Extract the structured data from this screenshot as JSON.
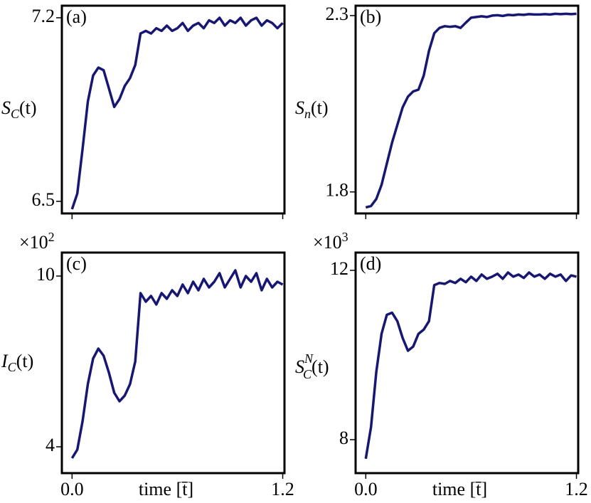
{
  "chart_data": [
    {
      "type": "line",
      "annotation": "(a)",
      "ylabel": {
        "main": "S",
        "sub": "C",
        "args": "(t)"
      },
      "x": [
        0,
        0.03,
        0.06,
        0.09,
        0.12,
        0.15,
        0.18,
        0.21,
        0.24,
        0.27,
        0.3,
        0.33,
        0.36,
        0.39,
        0.42,
        0.45,
        0.48,
        0.51,
        0.54,
        0.57,
        0.6,
        0.63,
        0.66,
        0.69,
        0.72,
        0.75,
        0.78,
        0.81,
        0.84,
        0.87,
        0.9,
        0.93,
        0.96,
        0.99,
        1.02,
        1.05,
        1.08,
        1.11,
        1.14,
        1.17,
        1.2
      ],
      "values": [
        6.47,
        6.53,
        6.7,
        6.88,
        6.98,
        7.01,
        7.0,
        6.93,
        6.86,
        6.89,
        6.94,
        6.97,
        7.02,
        7.14,
        7.15,
        7.14,
        7.16,
        7.15,
        7.17,
        7.15,
        7.16,
        7.18,
        7.15,
        7.17,
        7.18,
        7.16,
        7.19,
        7.18,
        7.2,
        7.17,
        7.19,
        7.18,
        7.2,
        7.17,
        7.19,
        7.2,
        7.17,
        7.19,
        7.18,
        7.16,
        7.18
      ],
      "color": "#15157e",
      "xlim": [
        -0.058,
        1.21
      ],
      "ylim": [
        6.454,
        7.246
      ],
      "xticks": [
        {
          "value": 0,
          "label": "0.0"
        },
        1.2
      ],
      "show_xtick_labels": false,
      "yticks": [
        6.5,
        7.2
      ]
    },
    {
      "type": "line",
      "annotation": "(b)",
      "ylabel": {
        "main": "S",
        "sub": "n",
        "args": "(t)"
      },
      "x": [
        0,
        0.03,
        0.06,
        0.09,
        0.12,
        0.15,
        0.18,
        0.21,
        0.24,
        0.27,
        0.3,
        0.33,
        0.36,
        0.39,
        0.42,
        0.45,
        0.48,
        0.51,
        0.54,
        0.57,
        0.6,
        0.63,
        0.66,
        0.69,
        0.72,
        0.75,
        0.78,
        0.81,
        0.84,
        0.87,
        0.9,
        0.93,
        0.96,
        0.99,
        1.02,
        1.05,
        1.08,
        1.11,
        1.14,
        1.17,
        1.2
      ],
      "values": [
        1.756,
        1.76,
        1.78,
        1.82,
        1.88,
        1.94,
        1.99,
        2.04,
        2.07,
        2.085,
        2.09,
        2.13,
        2.2,
        2.25,
        2.265,
        2.27,
        2.268,
        2.27,
        2.265,
        2.28,
        2.294,
        2.296,
        2.298,
        2.296,
        2.3,
        2.301,
        2.299,
        2.302,
        2.301,
        2.303,
        2.302,
        2.304,
        2.303,
        2.303,
        2.304,
        2.303,
        2.305,
        2.304,
        2.305,
        2.304,
        2.305
      ],
      "color": "#15157e",
      "xlim": [
        -0.058,
        1.21
      ],
      "ylim": [
        1.739,
        2.328
      ],
      "xticks": [
        {
          "value": 0,
          "label": "0.0"
        },
        1.2
      ],
      "show_xtick_labels": false,
      "yticks": [
        1.8,
        2.3
      ]
    },
    {
      "type": "line",
      "annotation": "(c)",
      "ylabel": {
        "main": "I",
        "sub": "C",
        "args": "(t)"
      },
      "xlabel": "time [t̄]",
      "multiplier": {
        "base": "×10",
        "exponent": "2"
      },
      "x": [
        0,
        0.03,
        0.06,
        0.09,
        0.12,
        0.15,
        0.18,
        0.21,
        0.24,
        0.27,
        0.3,
        0.33,
        0.36,
        0.39,
        0.42,
        0.45,
        0.48,
        0.51,
        0.54,
        0.57,
        0.6,
        0.63,
        0.66,
        0.69,
        0.72,
        0.75,
        0.78,
        0.81,
        0.84,
        0.87,
        0.9,
        0.93,
        0.96,
        0.99,
        1.02,
        1.05,
        1.08,
        1.11,
        1.14,
        1.17,
        1.2
      ],
      "values": [
        3.6,
        3.9,
        4.9,
        6.2,
        7.1,
        7.45,
        7.2,
        6.6,
        5.9,
        5.6,
        5.8,
        6.2,
        7.0,
        9.4,
        9.1,
        9.3,
        9.0,
        9.4,
        9.2,
        9.5,
        9.3,
        9.7,
        9.4,
        9.8,
        9.5,
        9.9,
        9.6,
        9.8,
        10.1,
        9.6,
        9.9,
        10.2,
        9.6,
        10.0,
        9.8,
        10.1,
        9.5,
        9.9,
        9.6,
        9.8,
        9.7
      ],
      "color": "#15157e",
      "xlim": [
        -0.058,
        1.21
      ],
      "ylim": [
        3.075,
        10.825
      ],
      "xticks": [
        {
          "value": 0,
          "label": "0.0"
        },
        1.2
      ],
      "show_xtick_labels": true,
      "yticks": [
        4,
        10
      ]
    },
    {
      "type": "line",
      "annotation": "(d)",
      "ylabel": {
        "main": "S",
        "sub": "C",
        "sup": "N",
        "args": "(t)"
      },
      "xlabel": "time [t̄]",
      "multiplier": {
        "base": "×10",
        "exponent": "3"
      },
      "x": [
        0,
        0.03,
        0.06,
        0.09,
        0.12,
        0.15,
        0.18,
        0.21,
        0.24,
        0.27,
        0.3,
        0.33,
        0.36,
        0.39,
        0.42,
        0.45,
        0.48,
        0.51,
        0.54,
        0.57,
        0.6,
        0.63,
        0.66,
        0.69,
        0.72,
        0.75,
        0.78,
        0.81,
        0.84,
        0.87,
        0.9,
        0.93,
        0.96,
        0.99,
        1.02,
        1.05,
        1.08,
        1.11,
        1.14,
        1.17,
        1.2
      ],
      "values": [
        7.55,
        8.3,
        9.6,
        10.5,
        10.95,
        11.0,
        10.8,
        10.4,
        10.1,
        10.2,
        10.5,
        10.6,
        10.8,
        11.65,
        11.7,
        11.68,
        11.75,
        11.7,
        11.8,
        11.72,
        11.85,
        11.75,
        11.9,
        11.8,
        11.85,
        11.92,
        11.8,
        11.95,
        11.85,
        11.9,
        11.82,
        11.95,
        11.85,
        11.9,
        11.8,
        11.92,
        11.85,
        11.9,
        11.75,
        11.88,
        11.85
      ],
      "color": "#15157e",
      "xlim": [
        -0.058,
        1.21
      ],
      "ylim": [
        7.21,
        12.42
      ],
      "xticks": [
        {
          "value": 0,
          "label": "0.0"
        },
        1.2
      ],
      "show_xtick_labels": true,
      "yticks": [
        8,
        12
      ]
    }
  ]
}
